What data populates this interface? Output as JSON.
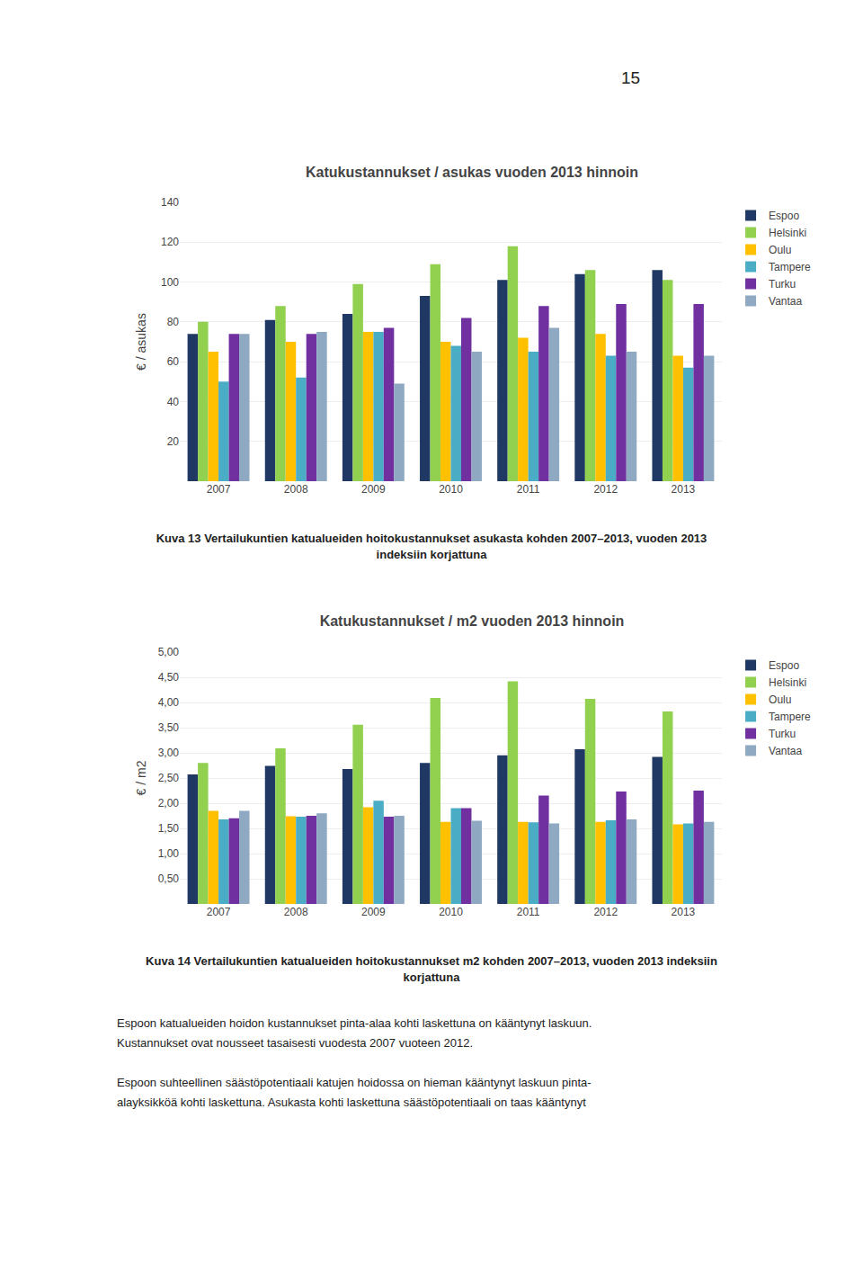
{
  "chart_data": [
    {
      "type": "bar",
      "title": "Katukustannukset / asukas vuoden 2013 hinnoin",
      "y_label": "€ / asukas",
      "categories": [
        "2007",
        "2008",
        "2009",
        "2010",
        "2011",
        "2012",
        "2013"
      ],
      "series": [
        {
          "name": "Espoo",
          "color": "#1F3864",
          "values": [
            74,
            81,
            84,
            93,
            101,
            104,
            106
          ]
        },
        {
          "name": "Helsinki",
          "color": "#92D050",
          "values": [
            80,
            88,
            99,
            109,
            118,
            106,
            101
          ]
        },
        {
          "name": "Oulu",
          "color": "#FFC000",
          "values": [
            65,
            70,
            75,
            70,
            72,
            74,
            63
          ]
        },
        {
          "name": "Tampere",
          "color": "#4BACC6",
          "values": [
            50,
            52,
            75,
            68,
            65,
            63,
            57
          ]
        },
        {
          "name": "Turku",
          "color": "#7030A0",
          "values": [
            74,
            74,
            77,
            82,
            88,
            89,
            89
          ]
        },
        {
          "name": "Vantaa",
          "color": "#8EA9C1",
          "values": [
            74,
            75,
            49,
            65,
            77,
            65,
            63
          ]
        }
      ],
      "ylim": [
        0,
        140
      ],
      "yticks": [
        {
          "value": 0,
          "label": null
        },
        20,
        40,
        60,
        80,
        100,
        120,
        140
      ],
      "grid": true,
      "legend": "upper right",
      "annotations": [
        "15",
        "Kuva 13 Vertailukuntien katualueiden hoitokustannukset asukasta kohden 2007–2013, vuoden 2013\nindeksiin korjattuna"
      ]
    },
    {
      "type": "bar",
      "title": "Katukustannukset / m2 vuoden 2013 hinnoin",
      "y_label": "€ / m2",
      "categories": [
        "2007",
        "2008",
        "2009",
        "2010",
        "2011",
        "2012",
        "2013"
      ],
      "series": [
        {
          "name": "Espoo",
          "color": "#1F3864",
          "values": [
            2.57,
            2.74,
            2.68,
            2.8,
            2.95,
            3.07,
            2.92
          ]
        },
        {
          "name": "Helsinki",
          "color": "#92D050",
          "values": [
            2.8,
            3.09,
            3.56,
            4.09,
            4.42,
            4.07,
            3.82
          ]
        },
        {
          "name": "Oulu",
          "color": "#FFC000",
          "values": [
            1.85,
            1.74,
            1.92,
            1.63,
            1.63,
            1.63,
            1.58
          ]
        },
        {
          "name": "Tampere",
          "color": "#4BACC6",
          "values": [
            1.68,
            1.73,
            2.05,
            1.9,
            1.62,
            1.66,
            1.6
          ]
        },
        {
          "name": "Turku",
          "color": "#7030A0",
          "values": [
            1.7,
            1.75,
            1.73,
            1.9,
            2.15,
            2.23,
            2.25
          ]
        },
        {
          "name": "Vantaa",
          "color": "#8EA9C1",
          "values": [
            1.85,
            1.8,
            1.75,
            1.65,
            1.6,
            1.68,
            1.63
          ]
        }
      ],
      "ylim": [
        0,
        5.0
      ],
      "yticks": [
        {
          "value": 0,
          "label": null
        },
        {
          "value": 0.5,
          "label": "0,50"
        },
        {
          "value": 1.0,
          "label": "1,00"
        },
        {
          "value": 1.5,
          "label": "1,50"
        },
        {
          "value": 2.0,
          "label": "2,00"
        },
        {
          "value": 2.5,
          "label": "2,50"
        },
        {
          "value": 3.0,
          "label": "3,00"
        },
        {
          "value": 3.5,
          "label": "3,50"
        },
        {
          "value": 4.0,
          "label": "4,00"
        },
        {
          "value": 4.5,
          "label": "4,50"
        },
        {
          "value": 5.0,
          "label": "5,00"
        }
      ],
      "grid": true,
      "legend": "upper right",
      "annotations": [
        "Kuva 14 Vertailukuntien katualueiden hoitokustannukset m2 kohden 2007–2013, vuoden 2013 indeksiin\nkorjattuna",
        "Espoon katualueiden hoidon kustannukset pinta-alaa kohti laskettuna on kääntynyt laskuun.",
        "Kustannukset ovat nousseet tasaisesti vuodesta 2007 vuoteen 2012.",
        "Espoon suhteellinen säästöpotentiaali katujen hoidossa on hieman kääntynyt laskuun pinta-",
        "alayksikköä kohti laskettuna. Asukasta kohti laskettuna säästöpotentiaali on taas kääntynyt"
      ]
    }
  ]
}
